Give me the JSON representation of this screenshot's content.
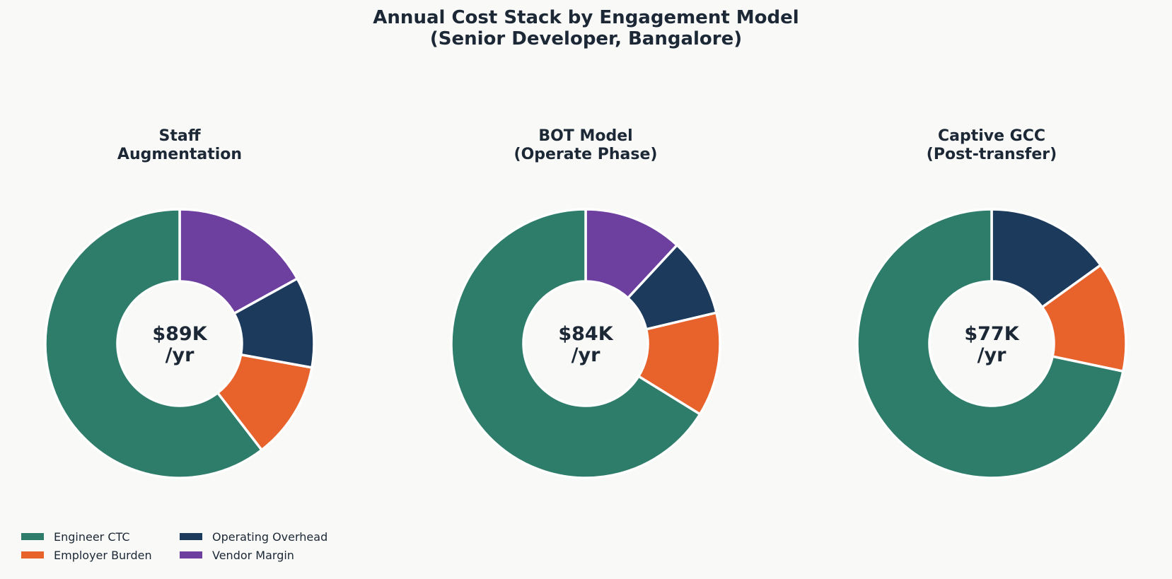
{
  "chart_data": {
    "type": "donut",
    "title_lines": [
      "Annual Cost Stack by Engagement Model",
      "(Senior Developer, Bangalore)"
    ],
    "categories": [
      "Engineer CTC",
      "Employer Burden",
      "Operating Overhead",
      "Vendor Margin"
    ],
    "colors": {
      "Engineer CTC": "#2e7d6b",
      "Employer Burden": "#e8622c",
      "Operating Overhead": "#1b3a5c",
      "Vendor Margin": "#6d40a0"
    },
    "legend": {
      "position": "bottom-left",
      "columns": 2,
      "order": [
        "Engineer CTC",
        "Employer Burden",
        "Operating Overhead",
        "Vendor Margin"
      ]
    },
    "charts": [
      {
        "title_lines": [
          "Staff",
          "Augmentation"
        ],
        "center_label_lines": [
          "$89K",
          "/yr"
        ],
        "total": 89,
        "slices": [
          {
            "label": "Vendor Margin",
            "value": 15.1
          },
          {
            "label": "Operating Overhead",
            "value": 9.7
          },
          {
            "label": "Employer Burden",
            "value": 10.4
          },
          {
            "label": "Engineer CTC",
            "value": 53.8
          }
        ]
      },
      {
        "title_lines": [
          "BOT Model",
          "(Operate Phase)"
        ],
        "center_label_lines": [
          "$84K",
          "/yr"
        ],
        "total": 84,
        "slices": [
          {
            "label": "Vendor Margin",
            "value": 10.0
          },
          {
            "label": "Operating Overhead",
            "value": 7.9
          },
          {
            "label": "Employer Burden",
            "value": 10.5
          },
          {
            "label": "Engineer CTC",
            "value": 55.6
          }
        ]
      },
      {
        "title_lines": [
          "Captive GCC",
          "(Post-transfer)"
        ],
        "center_label_lines": [
          "$77K",
          "/yr"
        ],
        "total": 77,
        "slices": [
          {
            "label": "Operating Overhead",
            "value": 11.6
          },
          {
            "label": "Employer Burden",
            "value": 10.2
          },
          {
            "label": "Engineer CTC",
            "value": 55.2
          }
        ]
      }
    ]
  }
}
